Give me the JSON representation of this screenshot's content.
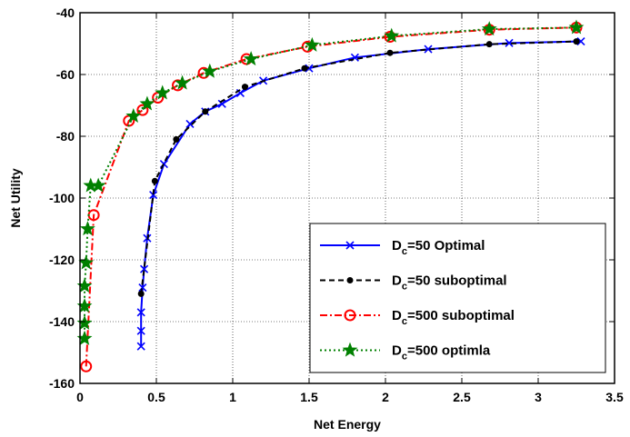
{
  "chart_data": {
    "type": "line",
    "xlabel": "Net Energy",
    "ylabel": "Net Utility",
    "xlim": [
      0,
      3.5
    ],
    "ylim": [
      -160,
      -40
    ],
    "xticks": [
      0,
      0.5,
      1,
      1.5,
      2,
      2.5,
      3,
      3.5
    ],
    "xtick_labels": [
      "0",
      "0.5",
      "1",
      "1.5",
      "2",
      "2.5",
      "3",
      "3.5"
    ],
    "yticks": [
      -160,
      -140,
      -120,
      -100,
      -80,
      -60,
      -40
    ],
    "ytick_labels": [
      "-160",
      "-140",
      "-120",
      "-100",
      "-80",
      "-60",
      "-40"
    ],
    "grid": true,
    "legend_position": "bottom-right",
    "series": [
      {
        "name": "D_c=50 Optimal",
        "legend_main": "D",
        "legend_sub": "c",
        "legend_rest": "=50 Optimal",
        "color": "#0000ff",
        "line_style": "solid",
        "marker": "x",
        "x": [
          0.4,
          0.4,
          0.4,
          0.41,
          0.42,
          0.44,
          0.48,
          0.55,
          0.72,
          0.82,
          0.93,
          1.05,
          1.2,
          1.5,
          1.8,
          2.28,
          2.81,
          3.28
        ],
        "y": [
          -148,
          -143,
          -137,
          -129,
          -123,
          -113,
          -99,
          -89,
          -76,
          -72,
          -69.5,
          -66,
          -62,
          -58,
          -54.5,
          -51.8,
          -49.8,
          -49.3
        ]
      },
      {
        "name": "D_c=50 suboptimal",
        "legend_main": "D",
        "legend_sub": "c",
        "legend_rest": "=50 suboptimal",
        "color": "#000000",
        "line_style": "dashed",
        "marker": "dot",
        "x": [
          0.4,
          0.49,
          0.63,
          0.82,
          1.08,
          1.47,
          2.03,
          2.68,
          3.25
        ],
        "y": [
          -131,
          -94.5,
          -81,
          -72,
          -64,
          -58,
          -53,
          -50.2,
          -49.3
        ]
      },
      {
        "name": "D_c=500 suboptimal",
        "legend_main": "D",
        "legend_sub": "c",
        "legend_rest": "=500 suboptimal",
        "color": "#ff0000",
        "line_style": "dashdot",
        "marker": "circle",
        "x": [
          0.04,
          0.09,
          0.32,
          0.41,
          0.51,
          0.64,
          0.81,
          1.09,
          1.49,
          2.03,
          2.68,
          3.25
        ],
        "y": [
          -154.5,
          -105.5,
          -75,
          -71.5,
          -67.5,
          -63.5,
          -59.5,
          -55,
          -51,
          -47.8,
          -45.5,
          -44.8
        ]
      },
      {
        "name": "D_c=500 optimla",
        "legend_main": "D",
        "legend_sub": "c",
        "legend_rest": "=500 optimla",
        "color": "#008000",
        "line_style": "dotted",
        "marker": "star",
        "x": [
          0.03,
          0.03,
          0.03,
          0.03,
          0.04,
          0.05,
          0.07,
          0.12,
          0.35,
          0.44,
          0.54,
          0.67,
          0.85,
          1.12,
          1.52,
          2.04,
          2.68,
          3.25
        ],
        "y": [
          -145.5,
          -140.5,
          -135,
          -128.5,
          -121,
          -110,
          -96,
          -96,
          -73.5,
          -69.5,
          -66,
          -62.8,
          -59,
          -55,
          -50.5,
          -47.5,
          -45.3,
          -44.8
        ]
      }
    ]
  }
}
